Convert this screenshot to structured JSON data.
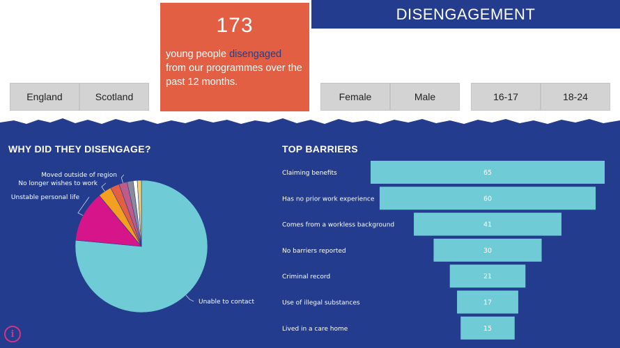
{
  "filters": {
    "region": [
      "England",
      "Scotland"
    ],
    "gender": [
      "Female",
      "Male"
    ],
    "age": [
      "16-17",
      "18-24"
    ]
  },
  "stat": {
    "number": "173",
    "line_pre": "young people ",
    "highlight": "disengaged",
    "line_post": " from our programmes over the past 12 months."
  },
  "header": {
    "title": "DISENGAGEMENT"
  },
  "colors": {
    "panel": "#233c8e",
    "stat_card": "#e35f43",
    "bar": "#6fcbd6",
    "pie": [
      "#6fcbd6",
      "#d6158a",
      "#f3a020",
      "#e35f43",
      "#c05a8a",
      "#8a8a9a",
      "#ffffff",
      "#f0d070"
    ]
  },
  "info_label": "i",
  "chart_data": [
    {
      "type": "pie",
      "title": "WHY DID THEY DISENGAGE?",
      "categories": [
        "Unable to contact",
        "Unstable personal life",
        "No longer wishes to work",
        "",
        "Moved outside of region",
        "",
        "",
        ""
      ],
      "values": [
        76.5,
        12.5,
        3.3,
        2.2,
        2.0,
        1.5,
        1.0,
        1.0
      ],
      "labels_shown": [
        "Unable to contact",
        "Unstable personal life",
        "No longer wishes to work",
        "Moved outside of region"
      ]
    },
    {
      "type": "bar",
      "orientation": "horizontal-funnel",
      "title": "TOP BARRIERS",
      "categories": [
        "Claiming benefits",
        "Has no prior work experience",
        "Comes from a workless background",
        "No barriers reported",
        "Criminal record",
        "Use of illegal substances",
        "Lived in a care home"
      ],
      "values": [
        65,
        60,
        41,
        30,
        21,
        17,
        15
      ]
    }
  ]
}
